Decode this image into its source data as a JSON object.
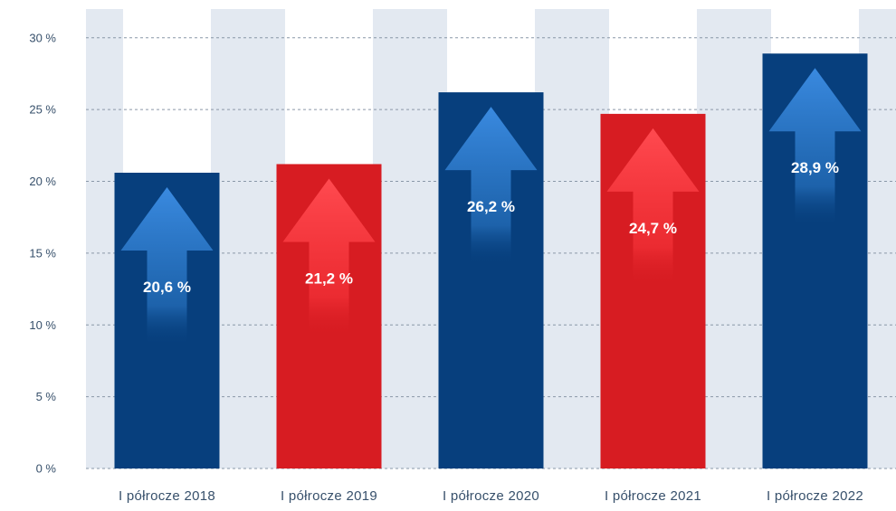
{
  "chart_data": {
    "type": "bar",
    "title": "",
    "xlabel": "",
    "ylabel": "",
    "categories": [
      "I półrocze 2018",
      "I półrocze 2019",
      "I półrocze 2020",
      "I półrocze 2021",
      "I półrocze 2022"
    ],
    "values": [
      20.6,
      21.2,
      26.2,
      24.7,
      28.9
    ],
    "value_labels": [
      "20,6 %",
      "21,2 %",
      "26,2 %",
      "24,7 %",
      "28,9 %"
    ],
    "bar_colors": [
      "#073f7d",
      "#d71c22",
      "#073f7d",
      "#d71c22",
      "#073f7d"
    ],
    "ylim": [
      0,
      32
    ],
    "yticks": [
      0,
      5,
      10,
      15,
      20,
      25,
      30
    ],
    "ytick_labels": [
      "0 %",
      "5 %",
      "10 %",
      "15 %",
      "20 %",
      "25 %",
      "30 %"
    ],
    "grid": true,
    "legend": "none"
  },
  "colors": {
    "navy": "#073f7d",
    "red": "#d71c22",
    "band": "#e3e9f1",
    "arrow_blue": "#2f7fd0",
    "arrow_red": "#ff4148"
  }
}
